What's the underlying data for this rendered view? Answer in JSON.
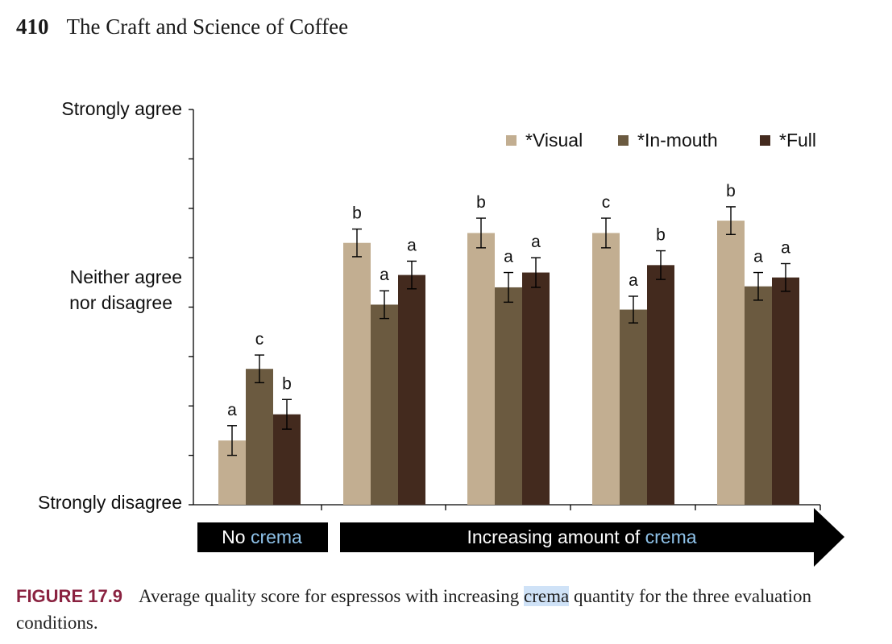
{
  "header": {
    "page_number": "410",
    "book_title": "The Craft and Science of Coffee"
  },
  "chart_data": {
    "type": "bar",
    "y_tick_labels": [
      "Strongly agree",
      "Neither agree nor disagree",
      "Strongly disagree"
    ],
    "ylim": [
      0,
      8
    ],
    "series": [
      {
        "name": "*Visual",
        "color": "#c2ae91",
        "values": [
          1.3,
          5.3,
          5.5,
          5.5,
          5.75
        ],
        "errors": [
          0.3,
          0.28,
          0.3,
          0.3,
          0.28
        ],
        "letters": [
          "a",
          "b",
          "b",
          "c",
          "b"
        ]
      },
      {
        "name": "*In-mouth",
        "color": "#6b5a40",
        "values": [
          2.75,
          4.05,
          4.4,
          3.95,
          4.42
        ],
        "errors": [
          0.28,
          0.28,
          0.3,
          0.27,
          0.28
        ],
        "letters": [
          "c",
          "a",
          "a",
          "a",
          "a"
        ]
      },
      {
        "name": "*Full",
        "color": "#432a1e",
        "values": [
          1.83,
          4.65,
          4.7,
          4.85,
          4.6
        ],
        "errors": [
          0.3,
          0.28,
          0.3,
          0.29,
          0.28
        ],
        "letters": [
          "b",
          "a",
          "a",
          "b",
          "a"
        ]
      }
    ],
    "band_no_crema": {
      "prefix": "No",
      "word": "crema"
    },
    "band_increasing": {
      "prefix": "Increasing amount of",
      "word": "crema"
    }
  },
  "caption": {
    "label": "FIGURE 17.9",
    "before": "Average quality score for espressos with increasing",
    "highlight": "crema",
    "after": "quantity for the three evaluation conditions."
  }
}
